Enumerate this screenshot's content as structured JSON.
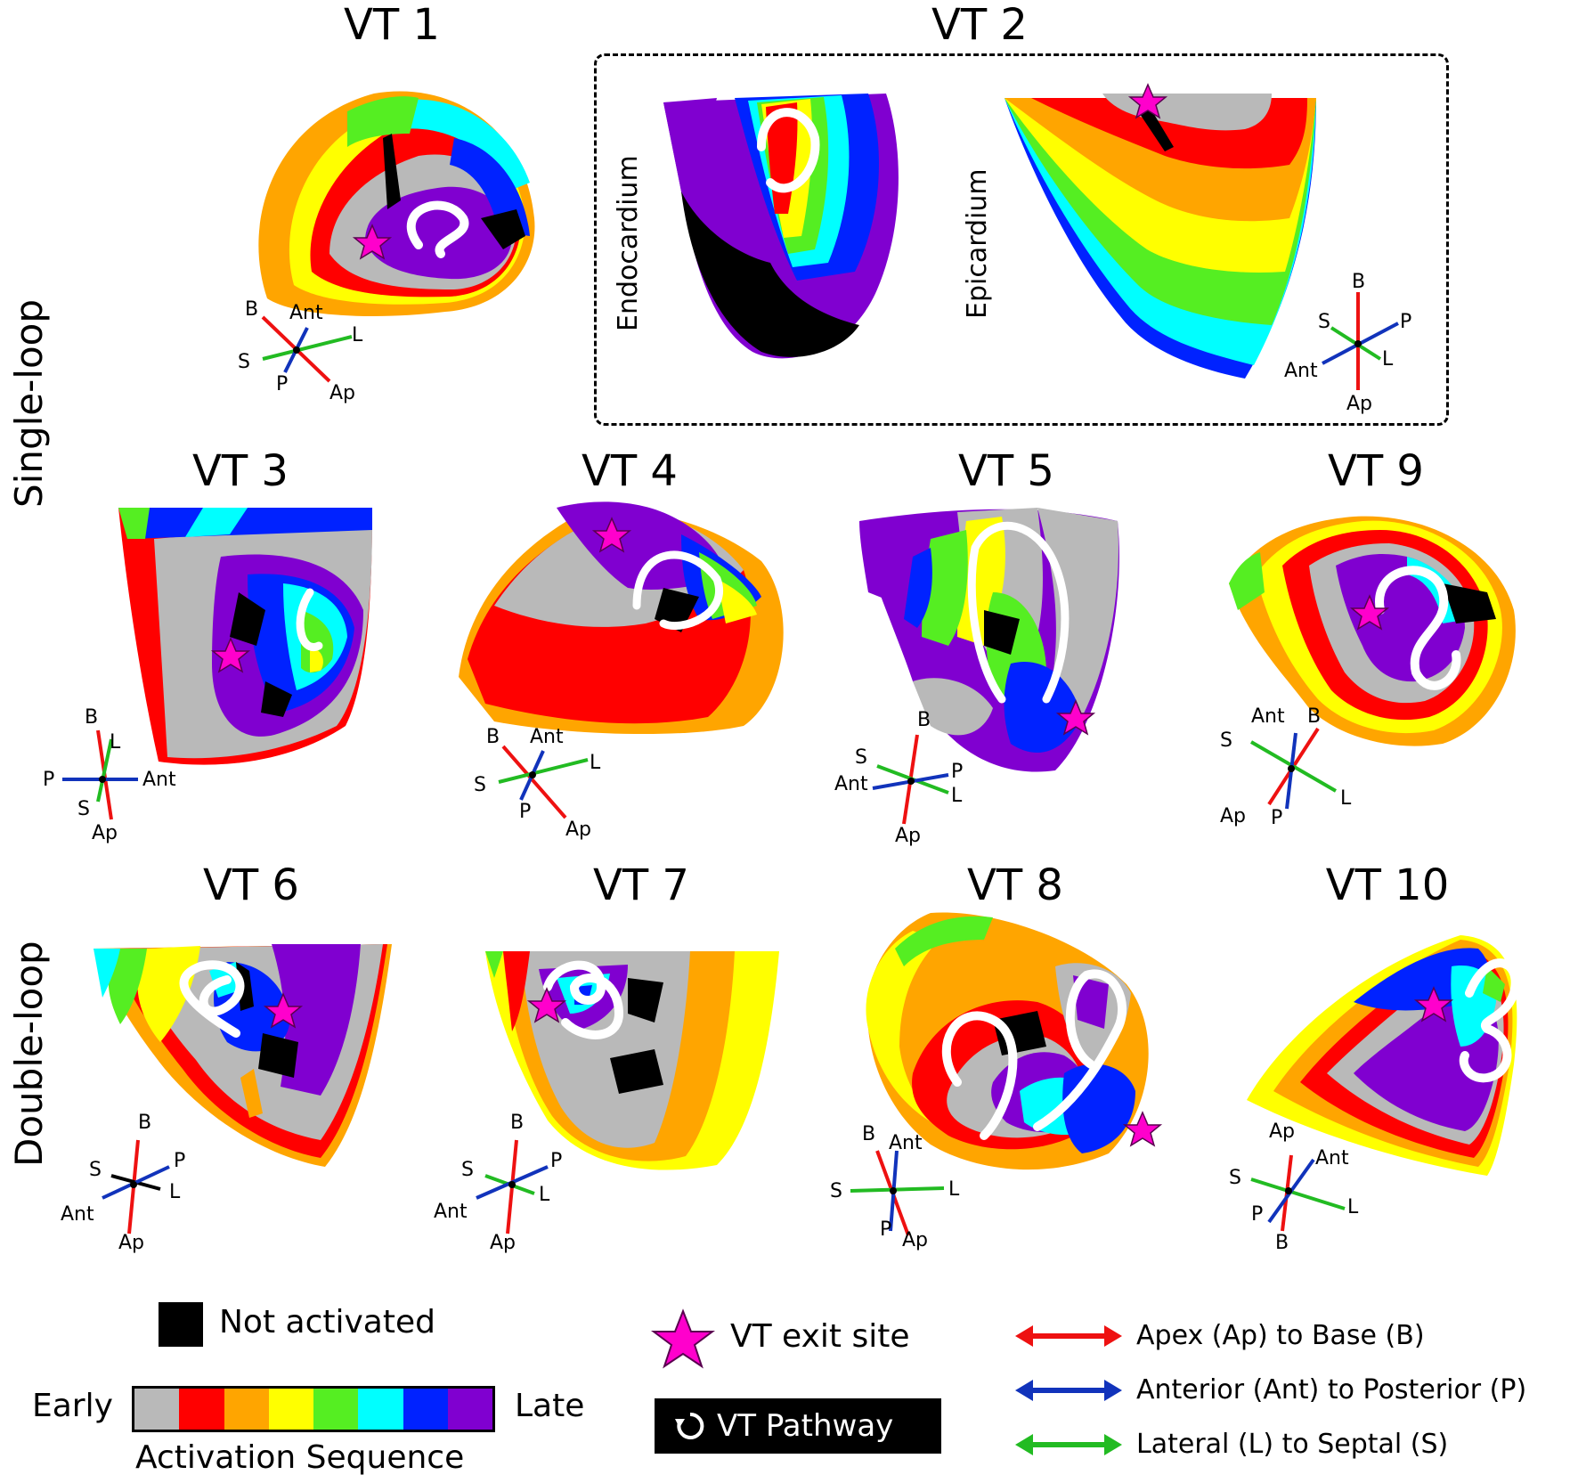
{
  "row_labels": {
    "single": "Single-loop",
    "double": "Double-loop"
  },
  "vt2_labels": {
    "endo": "Endocardium",
    "epi": "Epicardium"
  },
  "titles": [
    "VT 1",
    "VT 2",
    "VT 3",
    "VT 4",
    "VT 5",
    "VT 9",
    "VT 6",
    "VT 7",
    "VT 8",
    "VT 10"
  ],
  "colors": {
    "gray": "#b9b9b9",
    "red": "#ff0000",
    "orange": "#ffa500",
    "yellow": "#ffff00",
    "green": "#55ee22",
    "cyan": "#00ffff",
    "blue": "#0022ff",
    "purple": "#8000d0",
    "black": "#000000",
    "star": "#ff00cc",
    "ab_arrow": "#ee1111",
    "ap_arrow": "#1133bb",
    "ls_arrow": "#22bb22"
  },
  "orient_sets": [
    [
      "B",
      "Ant",
      "L",
      "S",
      "P",
      "Ap"
    ],
    [
      "B",
      "S",
      "P",
      "Ant",
      "L",
      "Ap"
    ],
    [
      "B",
      "L",
      "P",
      "Ant",
      "S",
      "Ap"
    ],
    [
      "B",
      "Ant",
      "L",
      "S",
      "P",
      "Ap"
    ],
    [
      "B",
      "S",
      "Ant",
      "P",
      "L",
      "Ap"
    ],
    [
      "Ant",
      "B",
      "S",
      "L",
      "Ap",
      "P"
    ],
    [
      "B",
      "S",
      "P",
      "L",
      "Ant",
      "Ap"
    ],
    [
      "B",
      "S",
      "P",
      "L",
      "Ant",
      "Ap"
    ],
    [
      "B",
      "Ant",
      "S",
      "L",
      "P",
      "Ap"
    ],
    [
      "Ap",
      "Ant",
      "S",
      "L",
      "P",
      "B"
    ]
  ],
  "legend": {
    "not_activated": "Not activated",
    "early": "Early",
    "late": "Late",
    "activation_sequence": "Activation Sequence",
    "exit_site": "VT exit site",
    "pathway": "VT Pathway",
    "apex_base": "Apex (Ap) to Base (B)",
    "ant_post": "Anterior (Ant) to Posterior (P)",
    "lat_sept": "Lateral (L) to Septal (S)"
  }
}
